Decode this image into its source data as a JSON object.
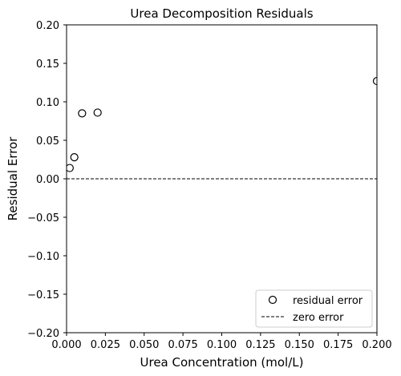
{
  "chart_data": {
    "type": "scatter",
    "title": "Urea Decomposition Residuals",
    "xlabel": "Urea Concentration (mol/L)",
    "ylabel": "Residual Error",
    "xlim": [
      0.0,
      0.2
    ],
    "ylim": [
      -0.2,
      0.2
    ],
    "xticks": [
      "0.000",
      "0.025",
      "0.050",
      "0.075",
      "0.100",
      "0.125",
      "0.150",
      "0.175",
      "0.200"
    ],
    "yticks": [
      "0.20",
      "0.15",
      "0.10",
      "0.05",
      "0.00",
      "−0.05",
      "−0.10",
      "−0.15",
      "−0.20"
    ],
    "xtick_values": [
      0.0,
      0.025,
      0.05,
      0.075,
      0.1,
      0.125,
      0.15,
      0.175,
      0.2
    ],
    "ytick_values": [
      0.2,
      0.15,
      0.1,
      0.05,
      0.0,
      -0.05,
      -0.1,
      -0.15,
      -0.2
    ],
    "grid": false,
    "legend_position": "bottom-right",
    "series": [
      {
        "name": "residual error",
        "kind": "scatter",
        "marker": "open-circle",
        "color": "#000000",
        "points": [
          {
            "x": 0.002,
            "y": 0.014
          },
          {
            "x": 0.005,
            "y": 0.028
          },
          {
            "x": 0.01,
            "y": 0.085
          },
          {
            "x": 0.02,
            "y": 0.086
          },
          {
            "x": 0.2,
            "y": 0.127
          }
        ]
      },
      {
        "name": "zero error",
        "kind": "line",
        "style": "dashed",
        "color": "#000000",
        "y": 0.0
      }
    ]
  }
}
